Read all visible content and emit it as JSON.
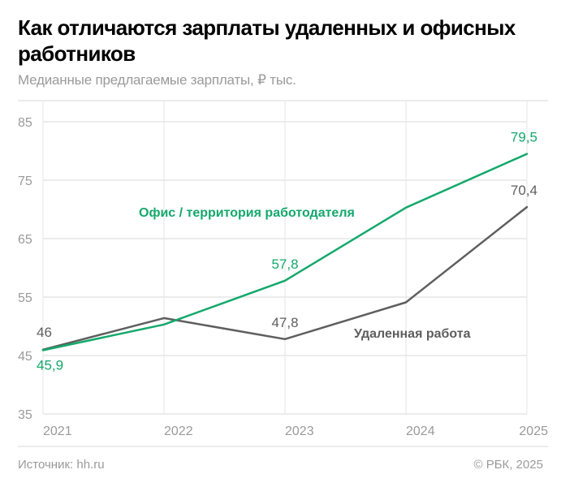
{
  "header": {
    "title": "Как отличаются зарплаты удаленных и офисных работников",
    "subtitle": "Медианные предлагаемые зарплаты, ₽ тыс."
  },
  "footer": {
    "source": "Источник: hh.ru",
    "copyright": "© РБК, 2025"
  },
  "colors": {
    "office": "#14a86c",
    "remote": "#5e5e5e",
    "grid": "#e6e6e6",
    "axis_text": "#9a9a9a"
  },
  "chart_data": {
    "type": "line",
    "title": "Как отличаются зарплаты удаленных и офисных работников",
    "subtitle": "Медианные предлагаемые зарплаты, ₽ тыс.",
    "xlabel": "",
    "ylabel": "",
    "categories": [
      "2021",
      "2022",
      "2023",
      "2024",
      "2025"
    ],
    "ylim": [
      35,
      85
    ],
    "yticks": [
      "35",
      "45",
      "55",
      "65",
      "75",
      "85"
    ],
    "grid": true,
    "series": [
      {
        "name": "Офис / территория работодателя",
        "values": [
          45.9,
          50.3,
          57.8,
          70.3,
          79.5
        ],
        "labels": [
          "45,9",
          null,
          "57,8",
          null,
          "79,5"
        ]
      },
      {
        "name": "Удаленная работа",
        "values": [
          46.0,
          51.4,
          47.8,
          54.1,
          70.4
        ],
        "labels": [
          "46",
          null,
          "47,8",
          null,
          "70,4"
        ]
      }
    ]
  }
}
